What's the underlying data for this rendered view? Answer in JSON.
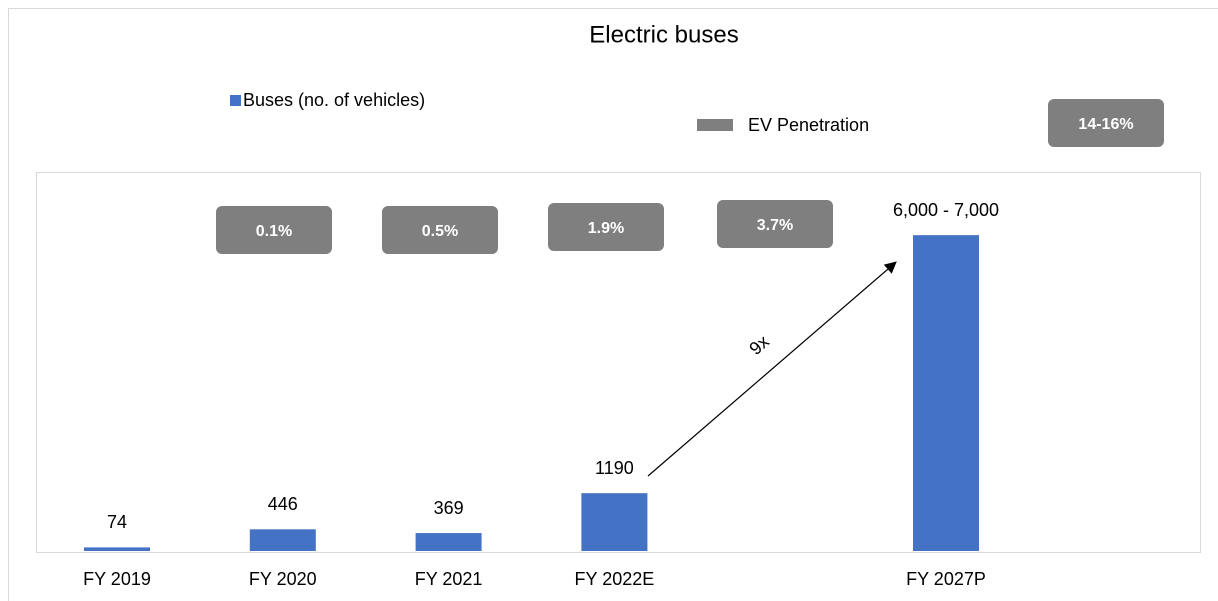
{
  "chart_data": {
    "type": "bar",
    "title": "Electric buses",
    "categories": [
      "FY 2019",
      "FY 2020",
      "FY 2021",
      "FY 2022E",
      null,
      "FY 2027P"
    ],
    "series": [
      {
        "name": "Buses (no. of vehicles)",
        "color": "#4472c4",
        "values": [
          74,
          446,
          369,
          1190,
          null,
          6500
        ],
        "value_labels": [
          "74",
          "446",
          "369",
          "1190",
          null,
          "6,000 - 7,000"
        ]
      }
    ],
    "ev_penetration": {
      "name": "EV Penetration",
      "color": "#7f7f7f",
      "values": [
        0.1,
        0.5,
        1.9,
        3.7,
        15
      ],
      "value_labels": [
        "0.1%",
        "0.5%",
        "1.9%",
        "3.7%",
        "14-16%"
      ]
    },
    "annotations": [
      "9x"
    ],
    "ylim": [
      0,
      7800
    ]
  }
}
